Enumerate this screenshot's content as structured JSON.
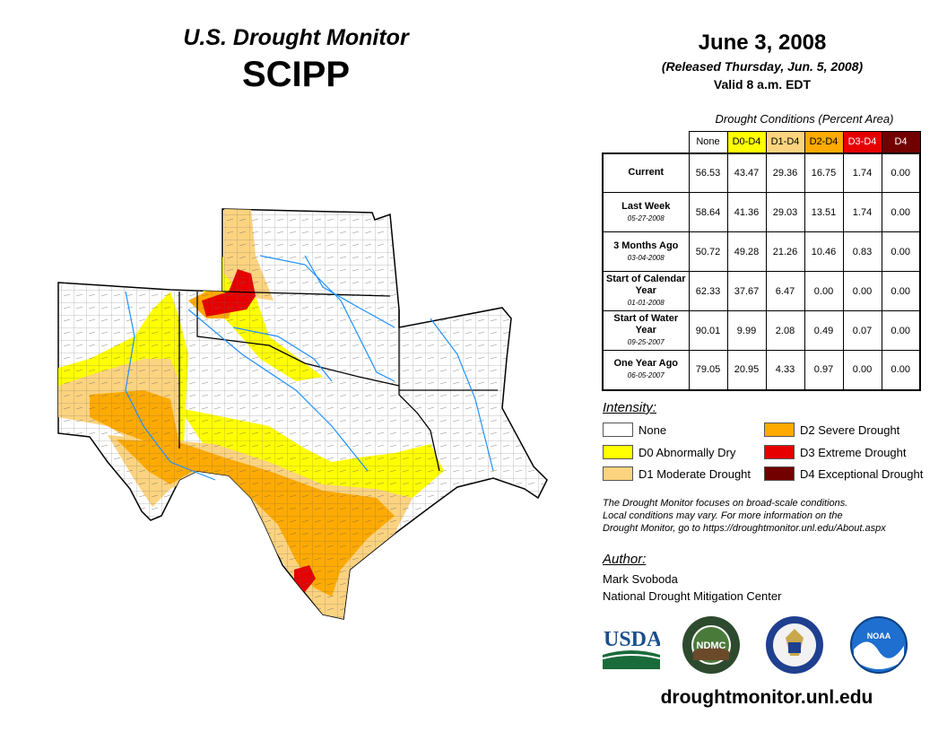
{
  "header": {
    "title_line1": "U.S. Drought Monitor",
    "title_line2": "SCIPP"
  },
  "date": {
    "main": "June 3, 2008",
    "released": "(Released Thursday, Jun. 5, 2008)",
    "valid": "Valid 8 a.m. EDT"
  },
  "table": {
    "caption": "Drought Conditions (Percent Area)",
    "columns": [
      "None",
      "D0-D4",
      "D1-D4",
      "D2-D4",
      "D3-D4",
      "D4"
    ],
    "rows": [
      {
        "label": "Current",
        "date": "",
        "values": [
          "56.53",
          "43.47",
          "29.36",
          "16.75",
          "1.74",
          "0.00"
        ]
      },
      {
        "label": "Last Week",
        "date": "05-27-2008",
        "values": [
          "58.64",
          "41.36",
          "29.03",
          "13.51",
          "1.74",
          "0.00"
        ]
      },
      {
        "label": "3 Months Ago",
        "date": "03-04-2008",
        "values": [
          "50.72",
          "49.28",
          "21.26",
          "10.46",
          "0.83",
          "0.00"
        ]
      },
      {
        "label": "Start of Calendar Year",
        "date": "01-01-2008",
        "values": [
          "62.33",
          "37.67",
          "6.47",
          "0.00",
          "0.00",
          "0.00"
        ]
      },
      {
        "label": "Start of Water Year",
        "date": "09-25-2007",
        "values": [
          "90.01",
          "9.99",
          "2.08",
          "0.49",
          "0.07",
          "0.00"
        ]
      },
      {
        "label": "One Year Ago",
        "date": "06-05-2007",
        "values": [
          "79.05",
          "20.95",
          "4.33",
          "0.97",
          "0.00",
          "0.00"
        ]
      }
    ]
  },
  "legend": {
    "title": "Intensity:",
    "items": [
      {
        "label": "None",
        "color": "#ffffff"
      },
      {
        "label": "D0 Abnormally Dry",
        "color": "#ffff00"
      },
      {
        "label": "D1 Moderate Drought",
        "color": "#fcd37f"
      },
      {
        "label": "D2 Severe Drought",
        "color": "#ffaa00"
      },
      {
        "label": "D3 Extreme Drought",
        "color": "#e60000"
      },
      {
        "label": "D4 Exceptional Drought",
        "color": "#730000"
      }
    ]
  },
  "note": {
    "line1": "The Drought Monitor focuses on broad-scale conditions.",
    "line2": "Local conditions may vary. For more information on the",
    "line3": "Drought Monitor, go to https://droughtmonitor.unl.edu/About.aspx"
  },
  "author": {
    "title": "Author:",
    "name": "Mark Svoboda",
    "org": "National Drought Mitigation Center"
  },
  "logos": {
    "usda": "USDA",
    "ndmc": "NDMC",
    "noaa": "NOAA"
  },
  "footer": {
    "url": "droughtmonitor.unl.edu"
  },
  "colors": {
    "water": "#1e90ff",
    "border": "#000000",
    "county": "#555555"
  }
}
